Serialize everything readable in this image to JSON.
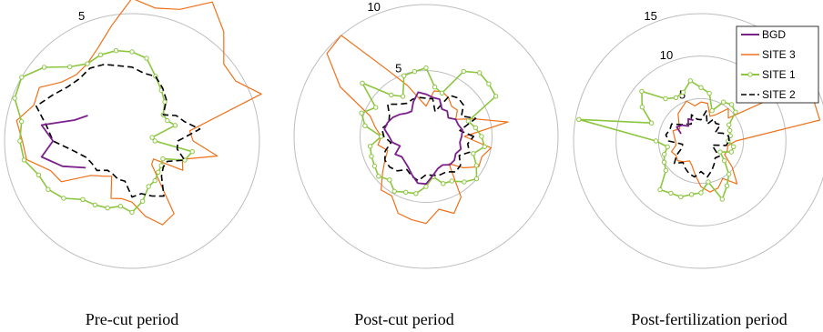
{
  "colors": {
    "BGD": "#7b1f8c",
    "SITE 3": "#f07018",
    "SITE 1": "#8cc63f",
    "SITE 2": "#000000",
    "ring": "#bdbdbd"
  },
  "legend": [
    "BGD",
    "SITE 3",
    "SITE 1",
    "SITE 2"
  ],
  "chart_data": [
    {
      "type": "polar-line",
      "caption": "Pre-cut period",
      "rings": [
        5
      ],
      "ring_labels": [
        "5"
      ],
      "rmax": 5,
      "series": [
        {
          "name": "SITE 3",
          "r": [
            2.4,
            2.3,
            5.4,
            4.7,
            4.7,
            5.6,
            6.3,
            5.5,
            5.3,
            5.6,
            4.6,
            3.9,
            3.5,
            3.4,
            3.6,
            4.2,
            4.1,
            4.6,
            4.3,
            4.2,
            3.4,
            3.2,
            2.1,
            1.8,
            1.6,
            2.4,
            2.3,
            2.4,
            3.0,
            3.5,
            3.3,
            1.2,
            1.1,
            2.3,
            2.1,
            3.4
          ]
        },
        {
          "name": "SITE 1",
          "r": [
            0.9,
            0.8,
            1.8,
            1.6,
            1.6,
            2.0,
            2.3,
            2.7,
            3.3,
            3.5,
            3.6,
            3.6,
            3.5,
            3.8,
            4.5,
            5.0,
            4.9,
            4.4,
            4.4,
            4.3,
            3.9,
            3.8,
            3.5,
            3.0,
            2.9,
            2.8,
            2.6,
            2.8,
            2.4,
            1.9,
            1.8,
            1.6,
            1.5,
            1.4,
            2.2,
            2.4
          ]
        },
        {
          "name": "SITE 2",
          "r": [
            1.8,
            2.7,
            2.2,
            2.0,
            1.6,
            2.1,
            2.4,
            2.7,
            2.7,
            2.9,
            3.0,
            3.2,
            3.3,
            3.2,
            3.3,
            3.6,
            4.0,
            3.4,
            3.1,
            2.3,
            1.9,
            1.8,
            1.8,
            1.5,
            1.5,
            1.6,
            1.6,
            2.2,
            2.1,
            2.3,
            2.5,
            1.8,
            1.6,
            1.6,
            2.2,
            1.8
          ]
        },
        {
          "name": "BGD",
          "r": [
            null,
            null,
            null,
            null,
            null,
            null,
            null,
            null,
            null,
            null,
            null,
            null,
            null,
            null,
            null,
            2.0,
            2.4,
            3.6,
            3.1,
            3.6,
            2.9,
            2.1,
            null,
            null,
            null,
            null,
            null,
            null,
            null,
            null,
            null,
            null,
            null,
            null,
            null,
            null
          ]
        }
      ]
    },
    {
      "type": "polar-line",
      "caption": "Post-cut period",
      "rings": [
        5,
        10
      ],
      "ring_labels": [
        "5",
        "10"
      ],
      "rmax": 10,
      "series": [
        {
          "name": "SITE 3",
          "r": [
            2.9,
            6.3,
            3.9,
            2.6,
            3.1,
            3.0,
            3.4,
            3.6,
            3.5,
            2.3,
            2.9,
            4.1,
            5.8,
            10.0,
            9.8,
            7.5,
            4.5,
            3.9,
            3.4,
            3.7,
            3.1,
            3.6,
            4.3,
            5.3,
            5.2,
            6.2,
            6.4,
            6.6,
            5.6,
            6.2,
            5.3,
            2.7,
            3.7,
            4.6,
            4.5,
            5.0
          ]
        },
        {
          "name": "SITE 1",
          "r": [
            4.2,
            3.8,
            3.4,
            6.1,
            6.2,
            6.3,
            5.7,
            3.5,
            3.8,
            5.2,
            5.0,
            4.9,
            3.5,
            4.1,
            6.3,
            4.4,
            5.2,
            4.7,
            3.4,
            4.3,
            4.4,
            4.5,
            4.7,
            4.3,
            4.8,
            4.5,
            4.4,
            3.8,
            3.1,
            3.8,
            3.9,
            4.5,
            5.0,
            4.4,
            3.8,
            4.5
          ]
        },
        {
          "name": "SITE 2",
          "r": [
            3.6,
            2.6,
            4.0,
            3.1,
            3.7,
            3.8,
            3.6,
            2.0,
            2.9,
            2.9,
            3.0,
            3.0,
            2.9,
            3.2,
            3.8,
            3.2,
            3.0,
            3.4,
            3.2,
            2.7,
            3.3,
            3.6,
            3.6,
            3.4,
            2.9,
            3.2,
            3.4,
            2.9,
            3.0,
            3.1,
            3.1,
            3.5,
            3.4,
            2.9,
            3.5,
            3.2
          ]
        },
        {
          "name": "BGD",
          "r": [
            2.7,
            2.8,
            2.6,
            2.6,
            2.2,
            2.5,
            2.4,
            3.0,
            3.0,
            3.2,
            3.4,
            2.8,
            2.2,
            2.3,
            2.6,
            2.9,
            3.1,
            3.2,
            2.8,
            2.6,
            2.1,
            2.7,
            2.4,
            2.5,
            2.7,
            3.1,
            3.6,
            3.6,
            3.0,
            2.6,
            2.5,
            2.8,
            2.8,
            2.6,
            2.8,
            2.6
          ]
        }
      ]
    },
    {
      "type": "polar-line",
      "caption": "Post-fertilization period",
      "rings": [
        5,
        10,
        15
      ],
      "ring_labels": [
        "5",
        "10",
        "15"
      ],
      "rmax": 15,
      "series": [
        {
          "name": "SITE 3",
          "r": [
            4.1,
            14.2,
            14.1,
            11.4,
            4.2,
            5.0,
            3.6,
            3.1,
            4.5,
            4.6,
            4.2,
            5.0,
            4.5,
            4.2,
            3.4,
            2.9,
            3.5,
            3.2,
            3.0,
            3.0,
            3.7,
            3.4,
            3.6,
            3.2,
            2.7,
            3.1,
            4.0,
            5.4,
            6.1,
            5.9,
            5.1,
            6.6,
            4.8,
            3.2,
            3.3,
            3.2
          ]
        },
        {
          "name": "SITE 1",
          "r": [
            3.2,
            3.5,
            3.6,
            3.8,
            5.3,
            5.6,
            5.3,
            3.8,
            5.7,
            6.3,
            7.2,
            6.1,
            5.9,
            6.5,
            9.1,
            8.0,
            6.2,
            14.6,
            5.3,
            4.0,
            4.6,
            5.0,
            5.4,
            7.5,
            7.1,
            7.0,
            6.4,
            6.1,
            4.9,
            7.3,
            6.1,
            5.1,
            3.6,
            2.6,
            3.8,
            3.9
          ]
        },
        {
          "name": "SITE 2",
          "r": [
            3.3,
            3.3,
            2.7,
            1.9,
            3.0,
            2.7,
            3.0,
            2.1,
            3.6,
            2.5,
            2.6,
            3.3,
            2.3,
            2.6,
            3.0,
            4.0,
            3.9,
            4.2,
            3.8,
            2.2,
            2.4,
            3.3,
            4.1,
            3.3,
            3.7,
            4.1,
            4.3,
            3.6,
            4.3,
            3.7,
            3.1,
            2.6,
            2.8,
            1.8,
            1.4,
            3.0
          ]
        },
        {
          "name": "BGD",
          "r": [
            null,
            null,
            null,
            null,
            null,
            null,
            null,
            null,
            null,
            null,
            null,
            2.6,
            3.0,
            2.3,
            2.9,
            3.3,
            2.5,
            null,
            null,
            null,
            null,
            null,
            null,
            null,
            null,
            null,
            null,
            null,
            null,
            null,
            null,
            null,
            null,
            null,
            null,
            null
          ]
        }
      ]
    }
  ]
}
